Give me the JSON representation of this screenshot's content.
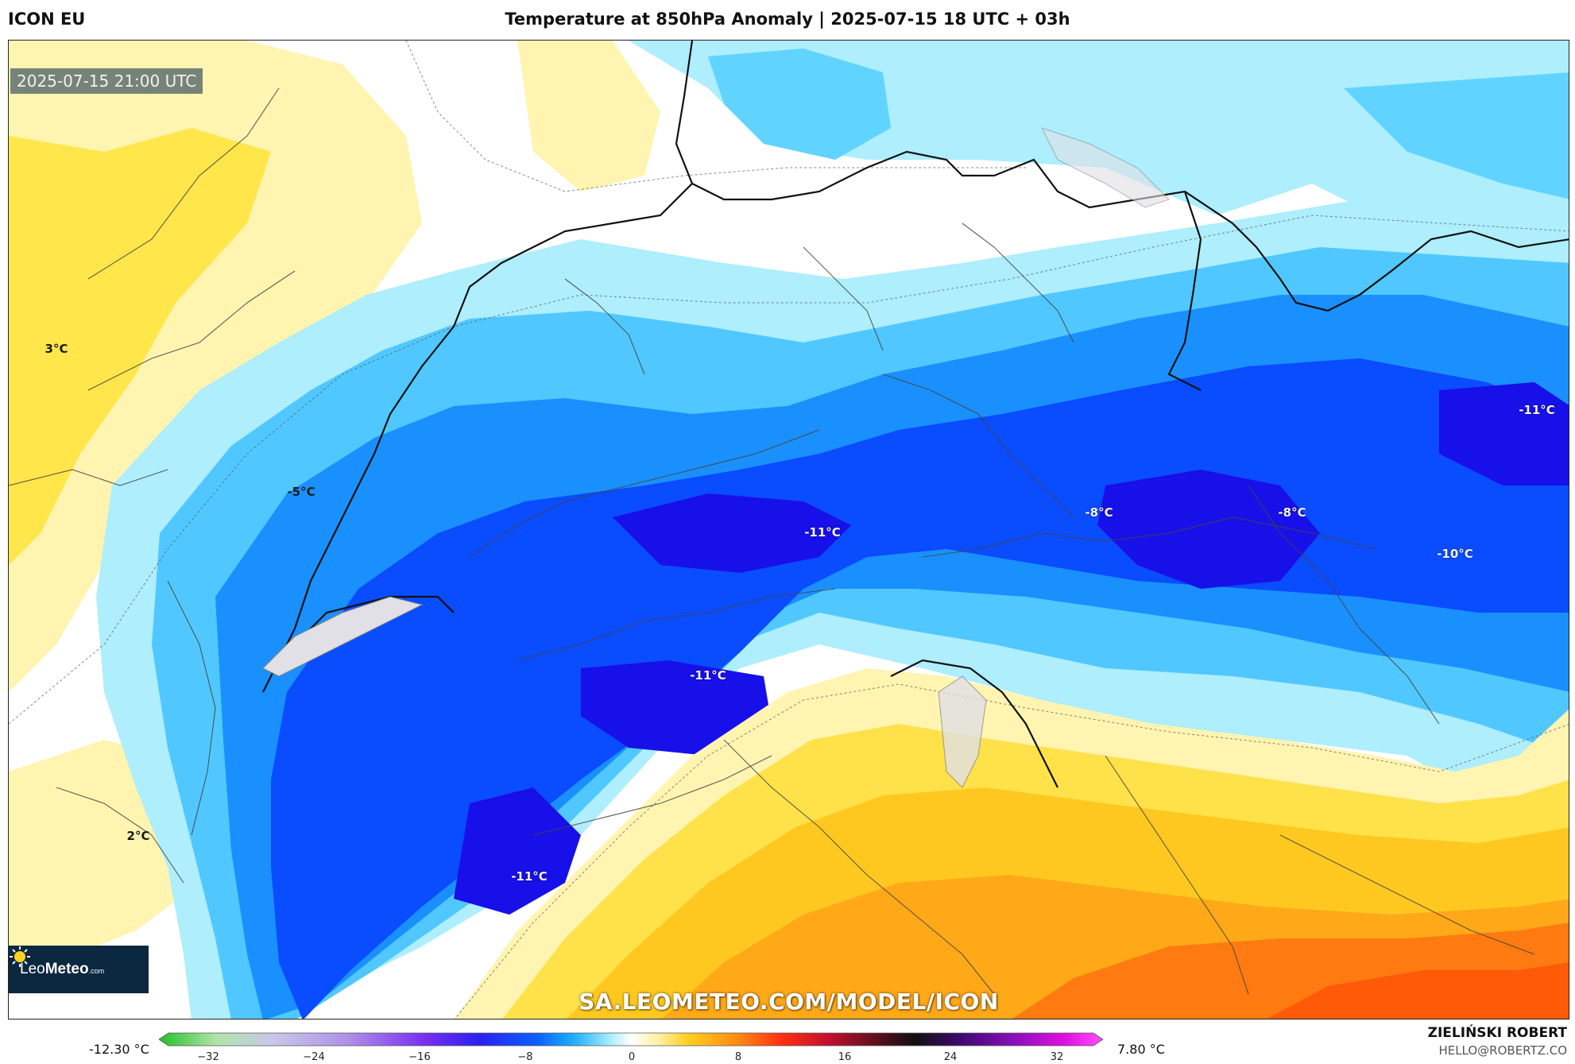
{
  "header": {
    "model": "ICON EU",
    "title": "Temperature at 850hPa Anomaly | 2025-07-15 18 UTC + 03h"
  },
  "map": {
    "valid_time": "2025-07-15 21:00 UTC",
    "labels": [
      {
        "text": "3°C",
        "tone": "dark"
      },
      {
        "text": "-5°C",
        "tone": "dark"
      },
      {
        "text": "-11°C",
        "tone": "light"
      },
      {
        "text": "-8°C",
        "tone": "light"
      },
      {
        "text": "-8°C",
        "tone": "light"
      },
      {
        "text": "-11°C",
        "tone": "light"
      },
      {
        "text": "-10°C",
        "tone": "light"
      },
      {
        "text": "-11°C",
        "tone": "light"
      },
      {
        "text": "2°C",
        "tone": "dark"
      },
      {
        "text": "-11°C",
        "tone": "light"
      }
    ],
    "watermark": "SA.LEOMETEO.COM/MODEL/ICON",
    "logo": {
      "leo": "Leo",
      "meteo": "Meteo",
      "suffix": ".com"
    }
  },
  "colorbar": {
    "min_label": "-12.30 °C",
    "max_label": "7.80 °C",
    "ticks": [
      "−32",
      "−24",
      "−16",
      "−8",
      "0",
      "8",
      "16",
      "24",
      "32"
    ],
    "stops": [
      "#22c02a",
      "#b0e4a8",
      "#c8c8e8",
      "#b090e8",
      "#7a30f0",
      "#2a20f0",
      "#0a60ff",
      "#20b0ff",
      "#b0f0ff",
      "#ffffff",
      "#fff0a0",
      "#ffd020",
      "#ff9010",
      "#ff3010",
      "#c01030",
      "#701020",
      "#101010",
      "#400870",
      "#9010c0",
      "#e010e0",
      "#ff50ff"
    ]
  },
  "footer": {
    "author": "ZIELIŃSKI ROBERT",
    "email": "HELLO@ROBERTZ.CO"
  }
}
